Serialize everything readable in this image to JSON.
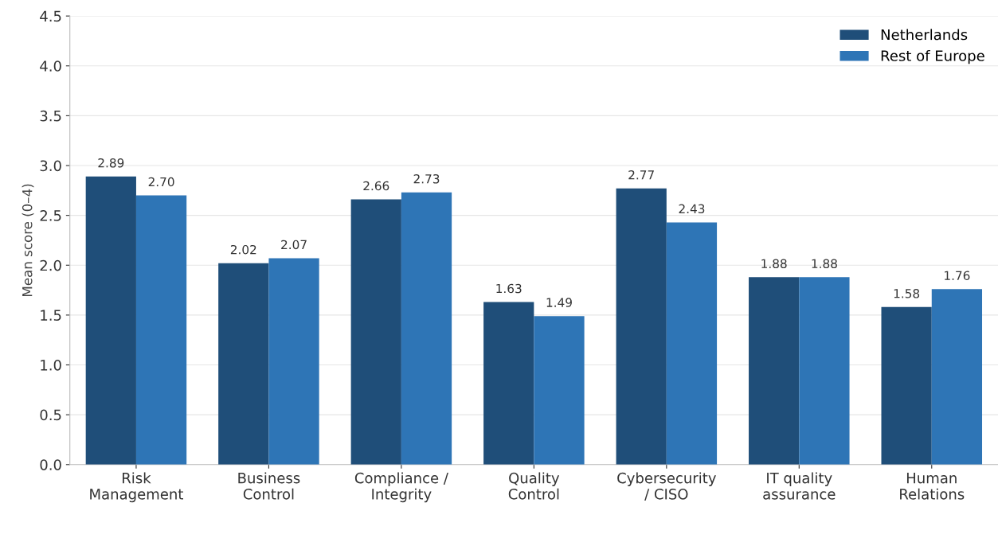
{
  "chart_data": {
    "type": "bar",
    "ylabel": "Mean score (0–4)",
    "categories": [
      "Risk\nManagement",
      "Business\nControl",
      "Compliance /\nIntegrity",
      "Quality\nControl",
      "Cybersecurity\n/ CISO",
      "IT quality\nassurance",
      "Human\nRelations"
    ],
    "series": [
      {
        "name": "Netherlands",
        "color": "#1f4e79",
        "values": [
          2.89,
          2.02,
          2.66,
          1.63,
          2.77,
          1.88,
          1.58
        ],
        "value_labels": [
          "2.89",
          "2.02",
          "2.66",
          "1.63",
          "2.77",
          "1.88",
          "1.58"
        ]
      },
      {
        "name": "Rest of Europe",
        "color": "#2e75b6",
        "values": [
          2.7,
          2.07,
          2.73,
          1.49,
          2.43,
          1.88,
          1.76
        ],
        "value_labels": [
          "2.70",
          "2.07",
          "2.73",
          "1.49",
          "2.43",
          "1.88",
          "1.76"
        ]
      }
    ],
    "ylim": [
      0,
      4.5
    ],
    "yticks": [
      {
        "value": 0,
        "label": "0.0"
      },
      0.5,
      {
        "value": 1,
        "label": "1.0"
      },
      1.5,
      {
        "value": 2,
        "label": "2.0"
      },
      2.5,
      {
        "value": 3,
        "label": "3.0"
      },
      3.5,
      {
        "value": 4,
        "label": "4.0"
      },
      4.5
    ],
    "grid": "y",
    "legend": "top right"
  }
}
